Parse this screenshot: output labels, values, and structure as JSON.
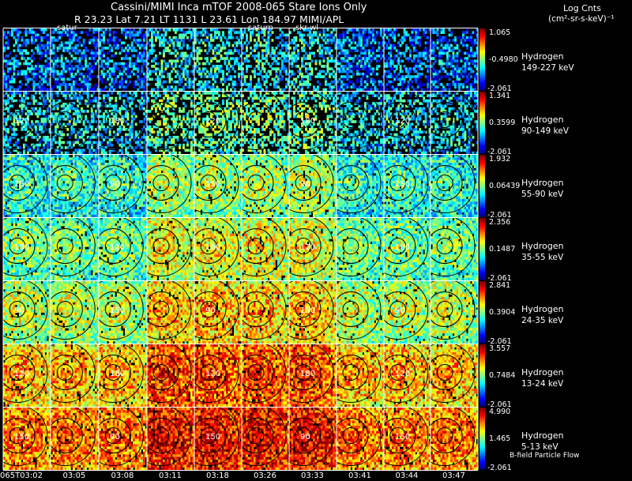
{
  "header": {
    "title": "Cassini/MIMI Inca mTOF  2008-065   Stare   Ions Only",
    "subtitle": "R      23.23 Lat 7.21 LT 1131 L      23.61 Lon      184.97   MIMI/APL",
    "units_title": "Log Cnts",
    "units_sub": "(cm²-sr-s-keV)⁻¹"
  },
  "panel_labels": [
    {
      "text": "satur",
      "col": 1
    },
    {
      "text": "saturn",
      "col": 5
    },
    {
      "text": "skr-wl",
      "col": 6
    }
  ],
  "footer": {
    "flow_label": "B-field Particle Flow"
  },
  "chart_data": {
    "type": "heatmap",
    "title": "Cassini/MIMI Inca mTOF  2008-065   Stare   Ions Only",
    "times": [
      "065T03:02",
      "03:05",
      "03:08",
      "03:11",
      "03:18",
      "03:26",
      "03:33",
      "03:41",
      "03:44",
      "03:47"
    ],
    "colorbar_units": "Log Cnts (cm²-sr-s-keV)⁻¹",
    "contour_labels": [
      "90",
      "120",
      "150",
      "180"
    ],
    "channels": [
      {
        "species": "Hydrogen",
        "energy": "149-227 keV",
        "max": "1.065",
        "mid": "-0.4980",
        "min": "-2.061"
      },
      {
        "species": "Hydrogen",
        "energy": "90-149 keV",
        "max": "1.341",
        "mid": "0.3599",
        "min": "-2.061"
      },
      {
        "species": "Hydrogen",
        "energy": "55-90 keV",
        "max": "1.932",
        "mid": "0.06439",
        "min": "-2.061"
      },
      {
        "species": "Hydrogen",
        "energy": "35-55 keV",
        "max": "2.356",
        "mid": "0.1487",
        "min": "-2.061"
      },
      {
        "species": "Hydrogen",
        "energy": "24-35 keV",
        "max": "2.841",
        "mid": "0.3904",
        "min": "-2.061"
      },
      {
        "species": "Hydrogen",
        "energy": "13-24 keV",
        "max": "3.557",
        "mid": "0.7484",
        "min": "-2.061"
      },
      {
        "species": "Hydrogen",
        "energy": "5-13 keV",
        "max": "4.990",
        "mid": "1.465",
        "min": "-2.061"
      }
    ]
  },
  "colors": {
    "background": "#000000",
    "text": "#ffffff",
    "contour": "#000000"
  }
}
